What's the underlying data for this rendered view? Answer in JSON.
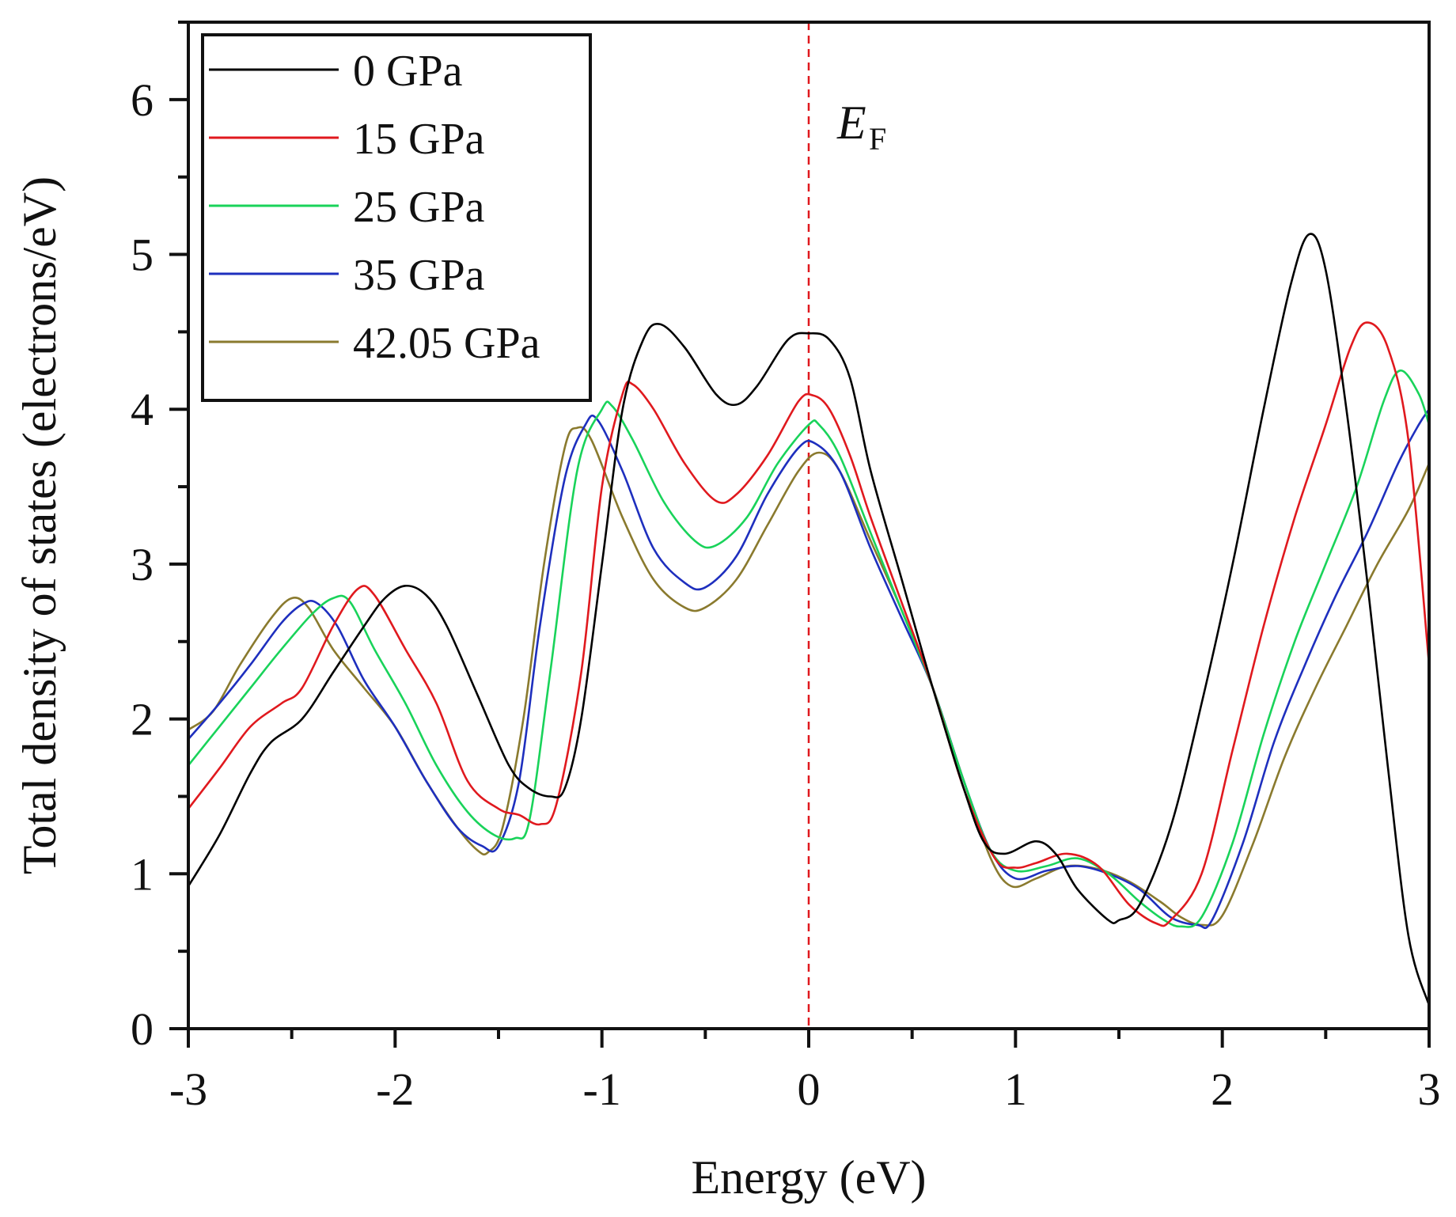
{
  "chart_data": {
    "type": "line",
    "title": "",
    "xlabel": "Energy (eV)",
    "ylabel": "Total density of states (electrons/eV)",
    "xlim": [
      -3,
      3
    ],
    "ylim": [
      0,
      6.5
    ],
    "x_ticks": [
      -3,
      -2,
      -1,
      0,
      1,
      2,
      3
    ],
    "x_tick_labels": [
      "-3",
      "-2",
      "-1",
      "0",
      "1",
      "2",
      "3"
    ],
    "y_ticks": [
      0,
      1,
      2,
      3,
      4,
      5,
      6
    ],
    "y_tick_labels": [
      "0",
      "1",
      "2",
      "3",
      "4",
      "5",
      "6"
    ],
    "legend_position": "top-left",
    "fermi_level": {
      "x": 0,
      "color": "#e0191e",
      "label_main": "E",
      "label_sub": "F"
    },
    "series": [
      {
        "name": "0 GPa",
        "color": "#000000",
        "points": [
          [
            -3.0,
            0.92
          ],
          [
            -2.85,
            1.25
          ],
          [
            -2.7,
            1.65
          ],
          [
            -2.6,
            1.85
          ],
          [
            -2.45,
            2.0
          ],
          [
            -2.3,
            2.3
          ],
          [
            -2.15,
            2.6
          ],
          [
            -2.05,
            2.78
          ],
          [
            -1.95,
            2.86
          ],
          [
            -1.85,
            2.8
          ],
          [
            -1.75,
            2.6
          ],
          [
            -1.6,
            2.15
          ],
          [
            -1.45,
            1.7
          ],
          [
            -1.35,
            1.55
          ],
          [
            -1.25,
            1.5
          ],
          [
            -1.18,
            1.55
          ],
          [
            -1.1,
            2.0
          ],
          [
            -1.0,
            3.0
          ],
          [
            -0.9,
            4.0
          ],
          [
            -0.8,
            4.45
          ],
          [
            -0.72,
            4.55
          ],
          [
            -0.6,
            4.4
          ],
          [
            -0.45,
            4.1
          ],
          [
            -0.35,
            4.03
          ],
          [
            -0.25,
            4.15
          ],
          [
            -0.1,
            4.45
          ],
          [
            0.0,
            4.49
          ],
          [
            0.1,
            4.45
          ],
          [
            0.2,
            4.2
          ],
          [
            0.3,
            3.6
          ],
          [
            0.45,
            2.9
          ],
          [
            0.6,
            2.2
          ],
          [
            0.75,
            1.55
          ],
          [
            0.85,
            1.2
          ],
          [
            0.95,
            1.13
          ],
          [
            1.1,
            1.21
          ],
          [
            1.2,
            1.12
          ],
          [
            1.3,
            0.9
          ],
          [
            1.45,
            0.7
          ],
          [
            1.5,
            0.7
          ],
          [
            1.6,
            0.8
          ],
          [
            1.75,
            1.3
          ],
          [
            1.9,
            2.1
          ],
          [
            2.05,
            3.0
          ],
          [
            2.2,
            4.0
          ],
          [
            2.33,
            4.8
          ],
          [
            2.42,
            5.13
          ],
          [
            2.5,
            4.9
          ],
          [
            2.6,
            4.0
          ],
          [
            2.7,
            2.9
          ],
          [
            2.8,
            1.7
          ],
          [
            2.9,
            0.6
          ],
          [
            3.0,
            0.15
          ]
        ]
      },
      {
        "name": "15 GPa",
        "color": "#e0191e",
        "points": [
          [
            -3.0,
            1.42
          ],
          [
            -2.85,
            1.68
          ],
          [
            -2.7,
            1.95
          ],
          [
            -2.55,
            2.1
          ],
          [
            -2.45,
            2.2
          ],
          [
            -2.3,
            2.6
          ],
          [
            -2.18,
            2.84
          ],
          [
            -2.1,
            2.8
          ],
          [
            -1.95,
            2.45
          ],
          [
            -1.8,
            2.1
          ],
          [
            -1.65,
            1.6
          ],
          [
            -1.5,
            1.42
          ],
          [
            -1.4,
            1.38
          ],
          [
            -1.3,
            1.32
          ],
          [
            -1.22,
            1.45
          ],
          [
            -1.1,
            2.3
          ],
          [
            -1.0,
            3.5
          ],
          [
            -0.9,
            4.1
          ],
          [
            -0.85,
            4.16
          ],
          [
            -0.75,
            4.0
          ],
          [
            -0.6,
            3.65
          ],
          [
            -0.45,
            3.41
          ],
          [
            -0.35,
            3.45
          ],
          [
            -0.2,
            3.7
          ],
          [
            -0.05,
            4.05
          ],
          [
            0.02,
            4.09
          ],
          [
            0.1,
            4.0
          ],
          [
            0.2,
            3.7
          ],
          [
            0.3,
            3.3
          ],
          [
            0.45,
            2.75
          ],
          [
            0.6,
            2.2
          ],
          [
            0.75,
            1.55
          ],
          [
            0.9,
            1.1
          ],
          [
            1.0,
            1.04
          ],
          [
            1.1,
            1.07
          ],
          [
            1.25,
            1.13
          ],
          [
            1.4,
            1.05
          ],
          [
            1.55,
            0.8
          ],
          [
            1.68,
            0.68
          ],
          [
            1.75,
            0.7
          ],
          [
            1.9,
            1.0
          ],
          [
            2.05,
            1.8
          ],
          [
            2.2,
            2.6
          ],
          [
            2.35,
            3.3
          ],
          [
            2.5,
            3.9
          ],
          [
            2.62,
            4.4
          ],
          [
            2.7,
            4.56
          ],
          [
            2.8,
            4.4
          ],
          [
            2.9,
            3.8
          ],
          [
            3.0,
            2.35
          ]
        ]
      },
      {
        "name": "25 GPa",
        "color": "#19d35a",
        "points": [
          [
            -3.0,
            1.7
          ],
          [
            -2.85,
            1.95
          ],
          [
            -2.7,
            2.2
          ],
          [
            -2.55,
            2.45
          ],
          [
            -2.4,
            2.68
          ],
          [
            -2.3,
            2.78
          ],
          [
            -2.22,
            2.76
          ],
          [
            -2.1,
            2.45
          ],
          [
            -1.95,
            2.1
          ],
          [
            -1.8,
            1.7
          ],
          [
            -1.65,
            1.4
          ],
          [
            -1.52,
            1.25
          ],
          [
            -1.42,
            1.23
          ],
          [
            -1.35,
            1.35
          ],
          [
            -1.25,
            2.3
          ],
          [
            -1.12,
            3.6
          ],
          [
            -1.0,
            4.0
          ],
          [
            -0.95,
            4.02
          ],
          [
            -0.85,
            3.8
          ],
          [
            -0.7,
            3.4
          ],
          [
            -0.55,
            3.15
          ],
          [
            -0.45,
            3.12
          ],
          [
            -0.3,
            3.3
          ],
          [
            -0.15,
            3.65
          ],
          [
            0.0,
            3.9
          ],
          [
            0.05,
            3.9
          ],
          [
            0.15,
            3.7
          ],
          [
            0.3,
            3.2
          ],
          [
            0.45,
            2.7
          ],
          [
            0.6,
            2.2
          ],
          [
            0.75,
            1.6
          ],
          [
            0.88,
            1.15
          ],
          [
            1.0,
            1.02
          ],
          [
            1.15,
            1.05
          ],
          [
            1.3,
            1.1
          ],
          [
            1.45,
            1.0
          ],
          [
            1.6,
            0.82
          ],
          [
            1.72,
            0.7
          ],
          [
            1.8,
            0.66
          ],
          [
            1.9,
            0.72
          ],
          [
            2.05,
            1.2
          ],
          [
            2.2,
            1.9
          ],
          [
            2.35,
            2.5
          ],
          [
            2.5,
            3.0
          ],
          [
            2.65,
            3.5
          ],
          [
            2.78,
            4.05
          ],
          [
            2.86,
            4.25
          ],
          [
            2.95,
            4.1
          ],
          [
            3.0,
            3.9
          ]
        ]
      },
      {
        "name": "35 GPa",
        "color": "#1e2fbe",
        "points": [
          [
            -3.0,
            1.87
          ],
          [
            -2.85,
            2.1
          ],
          [
            -2.7,
            2.35
          ],
          [
            -2.55,
            2.62
          ],
          [
            -2.45,
            2.74
          ],
          [
            -2.38,
            2.75
          ],
          [
            -2.28,
            2.6
          ],
          [
            -2.15,
            2.25
          ],
          [
            -2.0,
            1.95
          ],
          [
            -1.85,
            1.6
          ],
          [
            -1.7,
            1.3
          ],
          [
            -1.58,
            1.18
          ],
          [
            -1.5,
            1.18
          ],
          [
            -1.4,
            1.6
          ],
          [
            -1.3,
            2.6
          ],
          [
            -1.18,
            3.55
          ],
          [
            -1.08,
            3.9
          ],
          [
            -1.02,
            3.93
          ],
          [
            -0.9,
            3.6
          ],
          [
            -0.75,
            3.1
          ],
          [
            -0.6,
            2.88
          ],
          [
            -0.5,
            2.85
          ],
          [
            -0.35,
            3.05
          ],
          [
            -0.2,
            3.45
          ],
          [
            -0.05,
            3.75
          ],
          [
            0.03,
            3.78
          ],
          [
            0.15,
            3.6
          ],
          [
            0.3,
            3.1
          ],
          [
            0.45,
            2.65
          ],
          [
            0.6,
            2.2
          ],
          [
            0.75,
            1.6
          ],
          [
            0.88,
            1.15
          ],
          [
            1.0,
            0.97
          ],
          [
            1.15,
            1.02
          ],
          [
            1.3,
            1.05
          ],
          [
            1.45,
            1.0
          ],
          [
            1.6,
            0.9
          ],
          [
            1.75,
            0.72
          ],
          [
            1.88,
            0.67
          ],
          [
            1.95,
            0.7
          ],
          [
            2.1,
            1.2
          ],
          [
            2.25,
            1.85
          ],
          [
            2.4,
            2.35
          ],
          [
            2.55,
            2.8
          ],
          [
            2.7,
            3.2
          ],
          [
            2.85,
            3.65
          ],
          [
            2.95,
            3.9
          ],
          [
            3.0,
            4.0
          ]
        ]
      },
      {
        "name": "42.05 GPa",
        "color": "#8a7a2e",
        "points": [
          [
            -3.0,
            1.93
          ],
          [
            -2.88,
            2.05
          ],
          [
            -2.75,
            2.35
          ],
          [
            -2.6,
            2.65
          ],
          [
            -2.5,
            2.78
          ],
          [
            -2.42,
            2.72
          ],
          [
            -2.3,
            2.45
          ],
          [
            -2.15,
            2.2
          ],
          [
            -2.0,
            1.95
          ],
          [
            -1.85,
            1.6
          ],
          [
            -1.7,
            1.3
          ],
          [
            -1.6,
            1.15
          ],
          [
            -1.55,
            1.14
          ],
          [
            -1.48,
            1.3
          ],
          [
            -1.38,
            2.0
          ],
          [
            -1.28,
            3.0
          ],
          [
            -1.18,
            3.75
          ],
          [
            -1.12,
            3.88
          ],
          [
            -1.05,
            3.8
          ],
          [
            -0.9,
            3.3
          ],
          [
            -0.75,
            2.9
          ],
          [
            -0.6,
            2.72
          ],
          [
            -0.5,
            2.72
          ],
          [
            -0.35,
            2.9
          ],
          [
            -0.2,
            3.25
          ],
          [
            -0.05,
            3.6
          ],
          [
            0.05,
            3.72
          ],
          [
            0.15,
            3.6
          ],
          [
            0.3,
            3.15
          ],
          [
            0.45,
            2.7
          ],
          [
            0.6,
            2.2
          ],
          [
            0.75,
            1.6
          ],
          [
            0.88,
            1.1
          ],
          [
            0.98,
            0.92
          ],
          [
            1.1,
            0.97
          ],
          [
            1.25,
            1.05
          ],
          [
            1.4,
            1.03
          ],
          [
            1.55,
            0.95
          ],
          [
            1.7,
            0.82
          ],
          [
            1.8,
            0.72
          ],
          [
            1.9,
            0.67
          ],
          [
            2.0,
            0.73
          ],
          [
            2.15,
            1.2
          ],
          [
            2.3,
            1.75
          ],
          [
            2.45,
            2.2
          ],
          [
            2.6,
            2.6
          ],
          [
            2.75,
            3.0
          ],
          [
            2.9,
            3.35
          ],
          [
            3.0,
            3.65
          ]
        ]
      }
    ]
  }
}
